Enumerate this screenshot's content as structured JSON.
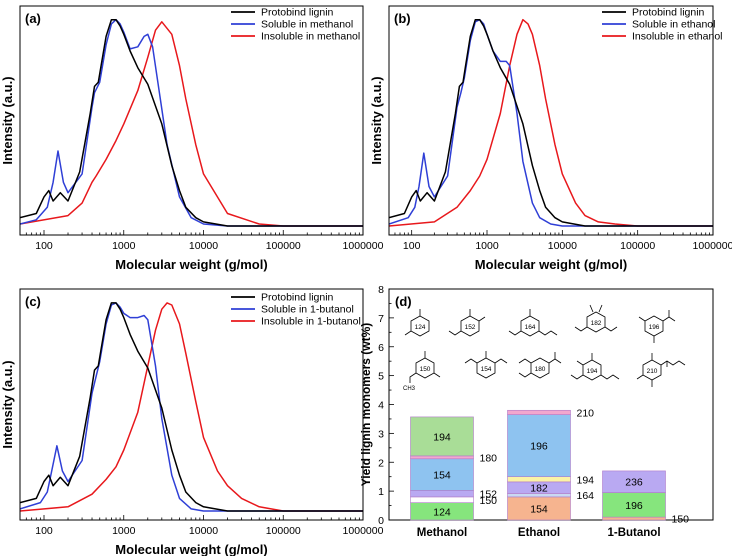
{
  "figure": {
    "gpc_panels": [
      {
        "panel_label": "(a)",
        "xlabel": "Molecular weight (g/mol)",
        "ylabel": "Intensity (a.u.)",
        "legend": [
          "Protobind lignin",
          "Soluble in methanol",
          "Insoluble in methanol"
        ]
      },
      {
        "panel_label": "(b)",
        "xlabel": "Molecular weight (g/mol)",
        "ylabel": "Intensity (a.u.)",
        "legend": [
          "Protobind lignin",
          "Soluble in ethanol",
          "Insoluble in ethanol"
        ]
      },
      {
        "panel_label": "(c)",
        "xlabel": "Molecular weight (g/mol)",
        "ylabel": "Intensity (a.u.)",
        "legend": [
          "Protobind lignin",
          "Soluble in 1-butanol",
          "Insoluble in 1-butanol"
        ]
      }
    ],
    "bar_panel": {
      "panel_label": "(d)",
      "ylabel": "Yield lignin monomers (wt%)",
      "structure_labels": [
        "124",
        "152",
        "164",
        "182",
        "196",
        "150",
        "154",
        "180",
        "194",
        "210"
      ],
      "methyl_label": "CH3"
    }
  },
  "chart_data": [
    {
      "type": "line",
      "title": "(a)",
      "xscale": "log",
      "xlim": [
        50,
        1000000
      ],
      "xticks": [
        100,
        1000,
        10000,
        100000,
        1000000
      ],
      "xlabel": "Molecular weight (g/mol)",
      "ylabel": "Intensity (a.u.)",
      "series": [
        {
          "name": "Protobind lignin",
          "color": "#000000",
          "x": [
            50,
            80,
            100,
            115,
            130,
            160,
            200,
            280,
            380,
            430,
            480,
            520,
            600,
            700,
            800,
            900,
            1000,
            1200,
            1500,
            2000,
            3000,
            4000,
            5000,
            6000,
            8000,
            10000,
            20000,
            1000000
          ],
          "y": [
            0.05,
            0.07,
            0.15,
            0.18,
            0.13,
            0.17,
            0.13,
            0.27,
            0.55,
            0.68,
            0.7,
            0.78,
            0.92,
            1.0,
            1.0,
            0.97,
            0.93,
            0.85,
            0.77,
            0.69,
            0.5,
            0.3,
            0.18,
            0.1,
            0.05,
            0.03,
            0.01,
            0.01
          ]
        },
        {
          "name": "Soluble in methanol",
          "color": "#2f3fd6",
          "x": [
            50,
            80,
            110,
            130,
            150,
            175,
            200,
            300,
            400,
            430,
            500,
            600,
            700,
            800,
            900,
            1000,
            1200,
            1500,
            1800,
            2000,
            2300,
            2800,
            3500,
            5000,
            7000,
            10000,
            20000,
            1000000
          ],
          "y": [
            0.02,
            0.04,
            0.1,
            0.22,
            0.37,
            0.22,
            0.17,
            0.26,
            0.58,
            0.65,
            0.7,
            0.88,
            0.98,
            1.0,
            0.98,
            0.94,
            0.86,
            0.87,
            0.92,
            0.93,
            0.87,
            0.65,
            0.4,
            0.15,
            0.05,
            0.02,
            0.01,
            0.01
          ]
        },
        {
          "name": "Insoluble in methanol",
          "color": "#e8181c",
          "x": [
            50,
            200,
            300,
            400,
            450,
            600,
            800,
            1000,
            1500,
            2000,
            2500,
            3000,
            4000,
            5000,
            6000,
            8000,
            10000,
            20000,
            50000,
            100000,
            1000000
          ],
          "y": [
            0.02,
            0.06,
            0.12,
            0.22,
            0.25,
            0.33,
            0.42,
            0.5,
            0.66,
            0.82,
            0.95,
            0.99,
            0.93,
            0.78,
            0.62,
            0.4,
            0.26,
            0.07,
            0.02,
            0.01,
            0.01
          ]
        }
      ]
    },
    {
      "type": "line",
      "title": "(b)",
      "xscale": "log",
      "xlim": [
        50,
        1000000
      ],
      "xticks": [
        100,
        1000,
        10000,
        100000,
        1000000
      ],
      "xlabel": "Molecular weight (g/mol)",
      "ylabel": "Intensity (a.u.)",
      "series": [
        {
          "name": "Protobind lignin",
          "color": "#000000",
          "x": [
            50,
            80,
            100,
            115,
            130,
            160,
            200,
            280,
            380,
            430,
            480,
            520,
            600,
            700,
            800,
            900,
            1000,
            1200,
            1500,
            2000,
            3000,
            4000,
            5000,
            6000,
            8000,
            10000,
            20000,
            1000000
          ],
          "y": [
            0.05,
            0.07,
            0.15,
            0.18,
            0.13,
            0.17,
            0.13,
            0.27,
            0.55,
            0.68,
            0.7,
            0.78,
            0.92,
            1.0,
            1.0,
            0.97,
            0.93,
            0.85,
            0.77,
            0.69,
            0.5,
            0.3,
            0.18,
            0.1,
            0.05,
            0.03,
            0.01,
            0.01
          ]
        },
        {
          "name": "Soluble in ethanol",
          "color": "#2f3fd6",
          "x": [
            50,
            90,
            110,
            125,
            145,
            170,
            200,
            300,
            400,
            450,
            500,
            600,
            700,
            800,
            900,
            1000,
            1200,
            1500,
            1800,
            2000,
            2500,
            3000,
            4000,
            5000,
            7000,
            10000,
            1000000
          ],
          "y": [
            0.02,
            0.05,
            0.1,
            0.2,
            0.36,
            0.2,
            0.15,
            0.25,
            0.58,
            0.65,
            0.72,
            0.9,
            0.99,
            1.0,
            0.98,
            0.93,
            0.85,
            0.8,
            0.8,
            0.78,
            0.55,
            0.32,
            0.12,
            0.05,
            0.02,
            0.01,
            0.01
          ]
        },
        {
          "name": "Insoluble in ethanol",
          "color": "#e8181c",
          "x": [
            50,
            200,
            400,
            600,
            800,
            1000,
            1500,
            2000,
            2500,
            3000,
            3500,
            4000,
            5000,
            6000,
            8000,
            10000,
            15000,
            20000,
            30000,
            50000,
            100000,
            1000000
          ],
          "y": [
            0.01,
            0.03,
            0.1,
            0.18,
            0.25,
            0.33,
            0.55,
            0.78,
            0.93,
            1.0,
            0.98,
            0.93,
            0.78,
            0.62,
            0.4,
            0.26,
            0.12,
            0.06,
            0.03,
            0.02,
            0.01,
            0.01
          ]
        }
      ]
    },
    {
      "type": "line",
      "title": "(c)",
      "xscale": "log",
      "xlim": [
        50,
        1000000
      ],
      "xticks": [
        100,
        1000,
        10000,
        100000,
        1000000
      ],
      "xlabel": "Molecular weight (g/mol)",
      "ylabel": "Intensity (a.u.)",
      "series": [
        {
          "name": "Protobind lignin",
          "color": "#000000",
          "x": [
            50,
            80,
            100,
            115,
            130,
            160,
            200,
            280,
            380,
            430,
            480,
            520,
            600,
            700,
            800,
            900,
            1000,
            1200,
            1500,
            2000,
            3000,
            4000,
            5000,
            6000,
            8000,
            10000,
            20000,
            1000000
          ],
          "y": [
            0.05,
            0.07,
            0.15,
            0.18,
            0.13,
            0.17,
            0.13,
            0.27,
            0.55,
            0.68,
            0.7,
            0.78,
            0.92,
            1.0,
            1.0,
            0.97,
            0.93,
            0.85,
            0.77,
            0.69,
            0.5,
            0.3,
            0.18,
            0.1,
            0.05,
            0.03,
            0.01,
            0.01
          ]
        },
        {
          "name": "Soluble in 1-butanol",
          "color": "#2f3fd6",
          "x": [
            50,
            90,
            110,
            125,
            145,
            170,
            200,
            300,
            400,
            450,
            500,
            600,
            700,
            800,
            900,
            1000,
            1200,
            1500,
            1800,
            2000,
            2500,
            3000,
            4000,
            5000,
            7000,
            10000,
            1000000
          ],
          "y": [
            0.02,
            0.05,
            0.1,
            0.2,
            0.32,
            0.2,
            0.15,
            0.25,
            0.57,
            0.65,
            0.72,
            0.9,
            0.99,
            1.0,
            0.98,
            0.95,
            0.93,
            0.93,
            0.94,
            0.92,
            0.7,
            0.45,
            0.18,
            0.07,
            0.02,
            0.01,
            0.01
          ]
        },
        {
          "name": "Insoluble in 1-butanol",
          "color": "#e8181c",
          "x": [
            50,
            200,
            400,
            600,
            800,
            1000,
            1500,
            2000,
            2500,
            3000,
            3500,
            4000,
            5000,
            6000,
            8000,
            10000,
            15000,
            20000,
            30000,
            50000,
            100000,
            1000000
          ],
          "y": [
            0.01,
            0.03,
            0.09,
            0.16,
            0.22,
            0.3,
            0.48,
            0.7,
            0.87,
            0.97,
            1.0,
            0.99,
            0.9,
            0.76,
            0.53,
            0.36,
            0.2,
            0.13,
            0.07,
            0.03,
            0.01,
            0.01
          ]
        }
      ]
    },
    {
      "type": "bar",
      "stacked": true,
      "title": "(d)",
      "categories": [
        "Methanol",
        "Ethanol",
        "1-Butanol"
      ],
      "ylabel": "Yield lignin monomers (wt%)",
      "ylim": [
        0,
        8
      ],
      "yticks": [
        0,
        1,
        2,
        3,
        4,
        5,
        6,
        7,
        8
      ],
      "stacks": [
        [
          {
            "label": "124",
            "value": 0.6,
            "color": "#86e57d",
            "label_pos": "inside"
          },
          {
            "label": "150",
            "value": 0.2,
            "color": "#ffffff",
            "label_pos": "right"
          },
          {
            "label": "152",
            "value": 0.22,
            "color": "#b9a9f2",
            "label_pos": "right"
          },
          {
            "label": "154",
            "value": 1.1,
            "color": "#8ec3f0",
            "label_pos": "inside"
          },
          {
            "label": "180",
            "value": 0.1,
            "color": "#f2a7ce",
            "label_pos": "right"
          },
          {
            "label": "194",
            "value": 1.35,
            "color": "#a9dd97",
            "label_pos": "inside"
          }
        ],
        [
          {
            "label": "154",
            "value": 0.8,
            "color": "#f6b48f",
            "label_pos": "inside"
          },
          {
            "label": "164",
            "value": 0.12,
            "color": "#c9d9f2",
            "label_pos": "right"
          },
          {
            "label": "182",
            "value": 0.4,
            "color": "#b9a9f2",
            "label_pos": "inside"
          },
          {
            "label": "194",
            "value": 0.18,
            "color": "#fbf3a6",
            "label_pos": "right"
          },
          {
            "label": "196",
            "value": 2.15,
            "color": "#8ec3f0",
            "label_pos": "inside"
          },
          {
            "label": "210",
            "value": 0.15,
            "color": "#f2a7ce",
            "label_pos": "right"
          }
        ],
        [
          {
            "label": "150",
            "value": 0.1,
            "color": "#f6b48f",
            "label_pos": "right"
          },
          {
            "label": "196",
            "value": 0.85,
            "color": "#86e57d",
            "label_pos": "inside"
          },
          {
            "label": "236",
            "value": 0.75,
            "color": "#b9a9f2",
            "label_pos": "inside"
          }
        ]
      ]
    }
  ]
}
